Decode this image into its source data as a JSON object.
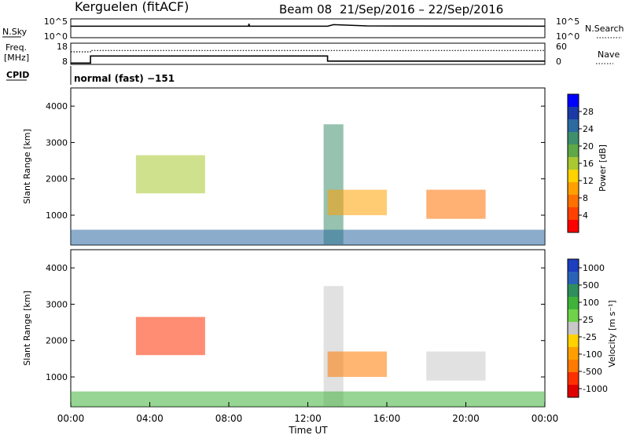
{
  "header": {
    "station": "Kerguelen (fitACF)",
    "beam": "Beam 08",
    "dates": "21/Sep/2016 – 22/Sep/2016"
  },
  "mode_label": "normal (fast) −151",
  "chart_data": [
    {
      "type": "line",
      "panel": "noise",
      "left_label": "N.Sky",
      "right_label": "N.Search",
      "left_ticks": [
        "10^5",
        "10^0"
      ],
      "right_ticks": [
        "10^5",
        "10^0"
      ],
      "series": [
        {
          "name": "N.Sky",
          "style": "solid",
          "x": [
            0,
            9.0,
            9.02,
            9.05,
            13.0,
            13.3,
            15.0,
            24
          ],
          "y": [
            3.4,
            3.4,
            4.2,
            3.4,
            3.4,
            3.9,
            3.5,
            3.4
          ]
        }
      ]
    },
    {
      "type": "line",
      "panel": "frequency",
      "left_label": "Freq. [MHz]",
      "right_label": "Nave",
      "left_ticks": [
        18,
        8
      ],
      "right_ticks": [
        60,
        0
      ],
      "ylim": [
        8,
        18
      ],
      "y2lim": [
        0,
        60
      ],
      "series": [
        {
          "name": "Freq.",
          "style": "solid",
          "x": [
            0,
            1.0,
            1.0,
            13.0,
            13.0,
            24
          ],
          "y": [
            8.3,
            8.3,
            11.9,
            11.9,
            9.3,
            9.3
          ]
        },
        {
          "name": "Nave",
          "style": "dotted",
          "x": [
            0,
            1.0,
            1.0,
            24
          ],
          "y": [
            36,
            36,
            40,
            40
          ]
        }
      ]
    },
    {
      "type": "heatmap",
      "panel": "power",
      "ylabel": "Slant Range [km]",
      "xlabel": "",
      "colorbar_label": "Power [dB]",
      "colorbar_ticks": [
        4,
        8,
        12,
        16,
        20,
        24,
        28
      ],
      "colorbar_colors": [
        "#0000ff",
        "#1a3aa8",
        "#2c6aa0",
        "#3f8f6d",
        "#5fa847",
        "#a9c832",
        "#ffd200",
        "#ffa000",
        "#ff7000",
        "#ff4000",
        "#ff0000"
      ],
      "ylim": [
        180,
        4500
      ],
      "yticks": [
        1000,
        2000,
        3000,
        4000
      ],
      "xlim": [
        0,
        24
      ],
      "echo_regions": [
        {
          "x": [
            3.3,
            6.8
          ],
          "y": [
            1600,
            2650
          ],
          "level": 0.45
        },
        {
          "x": [
            12.8,
            13.8
          ],
          "y": [
            200,
            3500
          ],
          "level": 0.3
        },
        {
          "x": [
            13.0,
            16.0
          ],
          "y": [
            1000,
            1700
          ],
          "level": 0.7
        },
        {
          "x": [
            18.0,
            21.0
          ],
          "y": [
            900,
            1700
          ],
          "level": 0.8
        },
        {
          "x": [
            0,
            24
          ],
          "y": [
            180,
            600
          ],
          "level": 0.15
        }
      ]
    },
    {
      "type": "heatmap",
      "panel": "velocity",
      "ylabel": "Slant Range [km]",
      "xlabel": "Time UT",
      "colorbar_label": "Velocity [m s⁻¹]",
      "colorbar_ticks": [
        1000,
        500,
        100,
        25,
        -25,
        -100,
        -500,
        -1000
      ],
      "colorbar_colors": [
        "#1c3fc0",
        "#2a62b8",
        "#2f8f5c",
        "#3fb23a",
        "#6fd24a",
        "#c8c8c8",
        "#ffd200",
        "#ffa000",
        "#ff7a00",
        "#ff3000",
        "#e00000"
      ],
      "ylim": [
        180,
        4500
      ],
      "yticks": [
        1000,
        2000,
        3000,
        4000
      ],
      "xlim": [
        0,
        24
      ],
      "xticks": [
        "00:00",
        "04:00",
        "08:00",
        "12:00",
        "16:00",
        "20:00",
        "00:00"
      ],
      "echo_regions": [
        {
          "x": [
            3.3,
            6.8
          ],
          "y": [
            1600,
            2650
          ],
          "level": 0.85
        },
        {
          "x": [
            12.8,
            13.8
          ],
          "y": [
            200,
            3500
          ],
          "level": 0.5
        },
        {
          "x": [
            13.0,
            16.0
          ],
          "y": [
            1000,
            1700
          ],
          "level": 0.75
        },
        {
          "x": [
            18.0,
            21.0
          ],
          "y": [
            900,
            1700
          ],
          "level": 0.45
        },
        {
          "x": [
            0,
            24
          ],
          "y": [
            180,
            600
          ],
          "level": 0.3
        }
      ]
    }
  ]
}
